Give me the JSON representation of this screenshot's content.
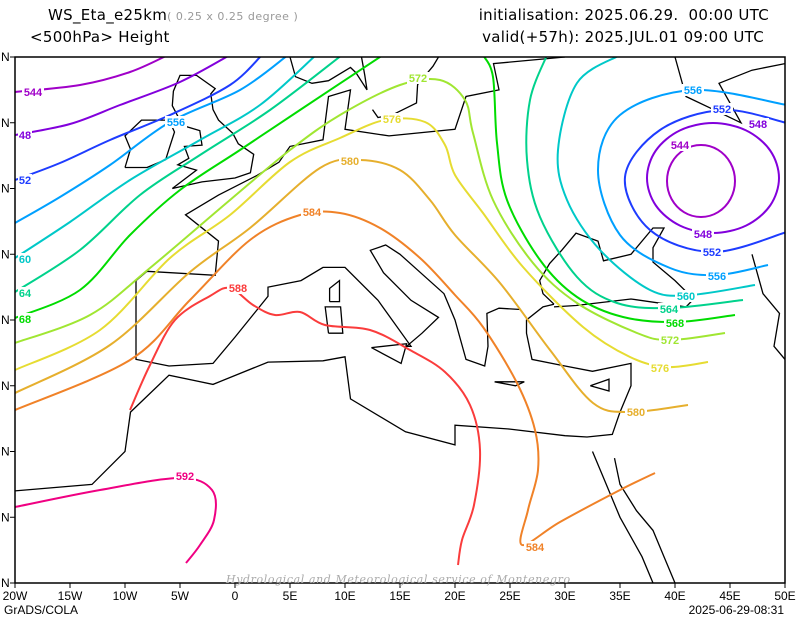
{
  "header": {
    "model": "WS_Eta_e25km",
    "resolution": "( 0.25 x 0.25 degree )",
    "variable": "<500hPa> Height",
    "initialisation": "initialisation: 2025.06.29.  00:00 UTC",
    "valid": "valid(+57h): 2025.JUL.01 09:00 UTC"
  },
  "axes": {
    "lon_labels": [
      "20W",
      "15W",
      "10W",
      "5W",
      "0",
      "5E",
      "10E",
      "15E",
      "20E",
      "25E",
      "30E",
      "35E",
      "40E",
      "45E",
      "50E"
    ],
    "lat_labels": [
      "N",
      "N",
      "N",
      "N",
      "N",
      "N",
      "N",
      "N",
      "N"
    ]
  },
  "contours": [
    {
      "level": "544",
      "color": "#a000c8"
    },
    {
      "level": "548",
      "color": "#8200dc"
    },
    {
      "level": "552",
      "color": "#1e3cff"
    },
    {
      "level": "556",
      "color": "#00a0ff"
    },
    {
      "level": "560",
      "color": "#00c8c8"
    },
    {
      "level": "564",
      "color": "#00d28c"
    },
    {
      "level": "568",
      "color": "#00dc00"
    },
    {
      "level": "572",
      "color": "#a0e632"
    },
    {
      "level": "576",
      "color": "#e6dc32"
    },
    {
      "level": "580",
      "color": "#e6af2d"
    },
    {
      "level": "584",
      "color": "#f08228"
    },
    {
      "level": "588",
      "color": "#fa3c3c"
    },
    {
      "level": "592",
      "color": "#f00082"
    }
  ],
  "edge_labels": [
    "544",
    "48",
    "52",
    "60",
    "64",
    "68"
  ],
  "watermark": "Hydrological and Meteorological service of Montenegro",
  "footer": {
    "left": "GrADS/COLA",
    "right": "2025-06-29-08:31"
  }
}
